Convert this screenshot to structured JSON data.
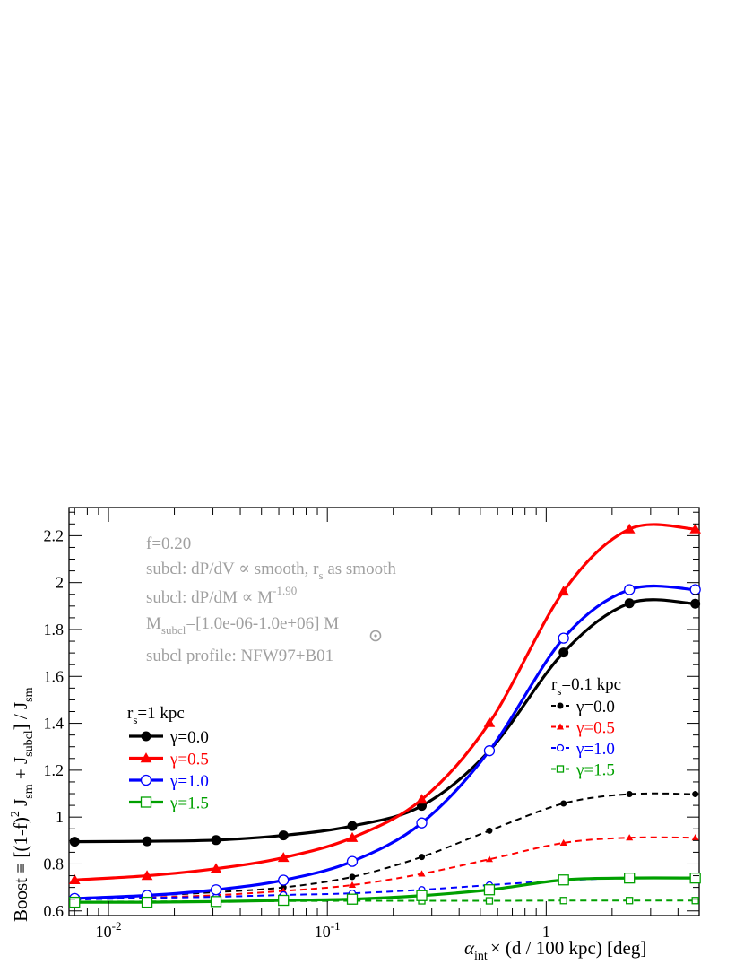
{
  "chart_data": {
    "type": "line",
    "xscale": "log",
    "xlim": [
      0.0066,
      5.0
    ],
    "ylim": [
      0.58,
      2.32
    ],
    "grid": false,
    "x": [
      0.007,
      0.015,
      0.031,
      0.063,
      0.13,
      0.27,
      0.55,
      1.2,
      2.4,
      4.8
    ],
    "xlabel": {
      "main": "α",
      "sub": "int",
      "rest": "× (d / 100 kpc)  [deg]"
    },
    "ylabel": {
      "p1": "Boost ≡ [(1-f)",
      "sup": "2",
      "p2": " J",
      "sub1": "sm",
      "p3": " + J",
      "sub2": "subcl",
      "p4": "] / J",
      "sub3": "sm"
    },
    "xticks": [
      {
        "value": 0.01,
        "label": "10",
        "exp": "-2"
      },
      {
        "value": 0.1,
        "label": "10",
        "exp": "-1"
      },
      {
        "value": 1,
        "label": "1",
        "exp": ""
      }
    ],
    "yticks": [
      0.6,
      0.8,
      1,
      1.2,
      1.4,
      1.6,
      1.8,
      2,
      2.2
    ],
    "ytick_labels": [
      "0.6",
      "0.8",
      "1",
      "1.2",
      "1.4",
      "1.6",
      "1.8",
      "2",
      "2.2"
    ],
    "annotations": {
      "line1": "f=0.20",
      "line2a": "subcl: dP/dV ∝ smooth, r",
      "line2sub": "s",
      "line2b": " as smooth",
      "line3a": "subcl: dP/dM ∝ M",
      "line3sup": "-1.90",
      "line4a": "M",
      "line4sub": "subcl",
      "line4b": "=[1.0e-06-1.0e+06] M",
      "line5": "subcl profile: NFW97+B01"
    },
    "legend_solid": {
      "title_r": "r",
      "title_sub": "s",
      "title_rest": "=1 kpc",
      "placement": "center-left"
    },
    "legend_dashed": {
      "title_r": "r",
      "title_sub": "s",
      "title_rest": "=0.1 kpc",
      "placement": "center-right"
    },
    "series": [
      {
        "name": "γ=0.0",
        "group": "solid",
        "color": "#000000",
        "marker": "circle-filled",
        "values": [
          0.895,
          0.897,
          0.902,
          0.922,
          0.962,
          1.048,
          1.283,
          1.702,
          1.912,
          1.91
        ]
      },
      {
        "name": "γ=0.5",
        "group": "solid",
        "color": "#ff0000",
        "marker": "triangle-filled",
        "values": [
          0.732,
          0.75,
          0.78,
          0.827,
          0.912,
          1.075,
          1.402,
          1.963,
          2.228,
          2.228
        ]
      },
      {
        "name": "γ=1.0",
        "group": "solid",
        "color": "#0000ff",
        "marker": "circle-open",
        "values": [
          0.653,
          0.666,
          0.69,
          0.731,
          0.811,
          0.975,
          1.283,
          1.763,
          1.97,
          1.97
        ]
      },
      {
        "name": "γ=1.5",
        "group": "solid",
        "color": "#00a000",
        "marker": "square-open",
        "values": [
          0.637,
          0.637,
          0.64,
          0.645,
          0.65,
          0.665,
          0.69,
          0.732,
          0.74,
          0.74
        ]
      },
      {
        "name": "γ=0.0",
        "group": "dashed",
        "color": "#000000",
        "marker": "circle-filled",
        "values": [
          0.655,
          0.665,
          0.68,
          0.7,
          0.745,
          0.83,
          0.942,
          1.058,
          1.098,
          1.098
        ]
      },
      {
        "name": "γ=0.5",
        "group": "dashed",
        "color": "#ff0000",
        "marker": "triangle-filled",
        "values": [
          0.65,
          0.657,
          0.667,
          0.685,
          0.71,
          0.758,
          0.82,
          0.89,
          0.912,
          0.912
        ]
      },
      {
        "name": "γ=1.0",
        "group": "dashed",
        "color": "#0000ff",
        "marker": "circle-open",
        "values": [
          0.648,
          0.655,
          0.66,
          0.668,
          0.675,
          0.69,
          0.71,
          0.73,
          0.74,
          0.74
        ]
      },
      {
        "name": "γ=1.5",
        "group": "dashed",
        "color": "#00a000",
        "marker": "square-open",
        "values": [
          0.64,
          0.64,
          0.641,
          0.642,
          0.643,
          0.643,
          0.643,
          0.644,
          0.644,
          0.644
        ]
      }
    ]
  }
}
